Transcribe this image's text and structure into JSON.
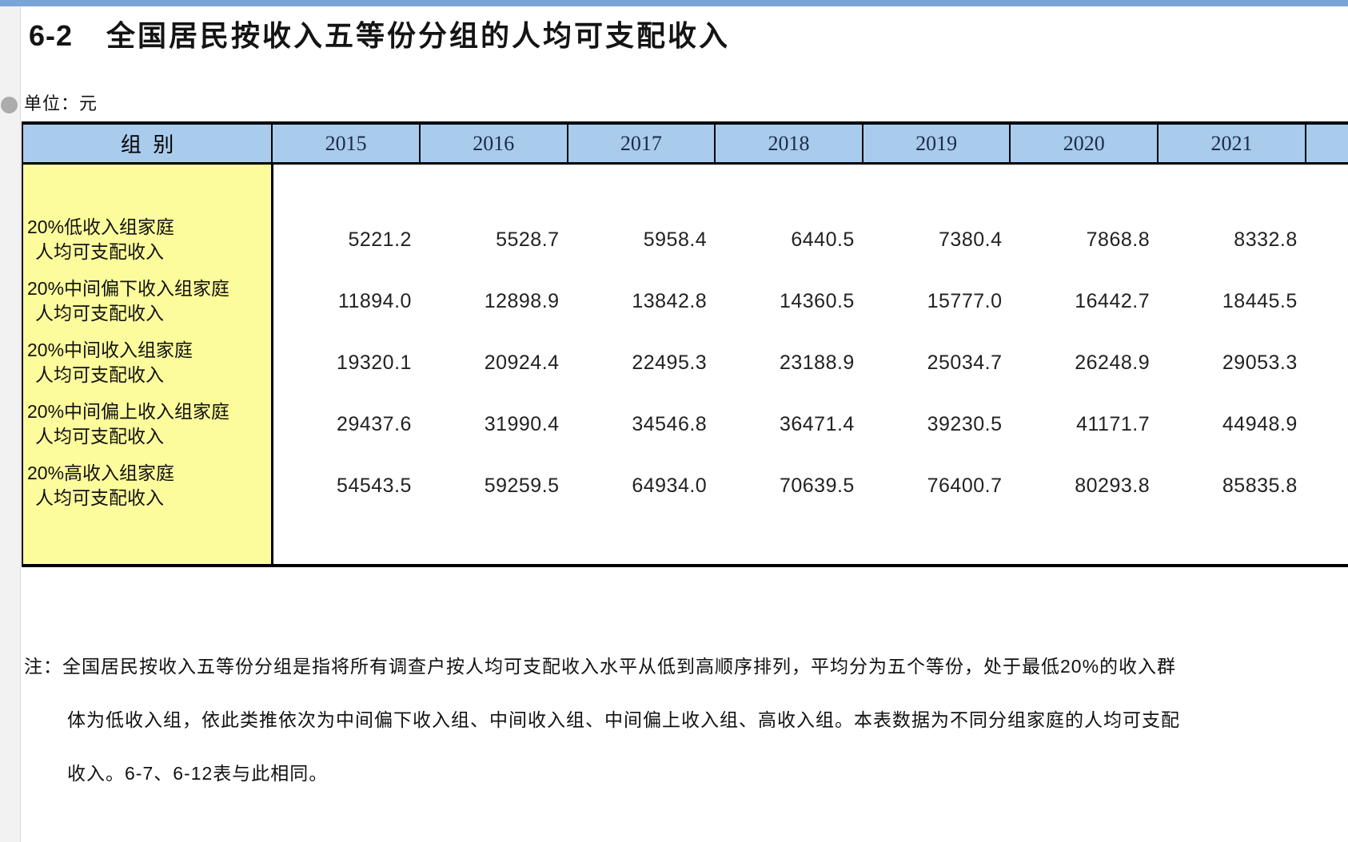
{
  "page": {
    "table_number": "6-2",
    "title": "全国居民按收入五等份分组的人均可支配收入",
    "unit_label": "单位：元"
  },
  "table": {
    "group_header": "组  别",
    "years": [
      "2015",
      "2016",
      "2017",
      "2018",
      "2019",
      "2020",
      "2021"
    ],
    "rows": [
      {
        "label_line1": "20%低收入组家庭",
        "label_line2": "人均可支配收入",
        "values": [
          "5221.2",
          "5528.7",
          "5958.4",
          "6440.5",
          "7380.4",
          "7868.8",
          "8332.8"
        ]
      },
      {
        "label_line1": "20%中间偏下收入组家庭",
        "label_line2": "人均可支配收入",
        "values": [
          "11894.0",
          "12898.9",
          "13842.8",
          "14360.5",
          "15777.0",
          "16442.7",
          "18445.5"
        ]
      },
      {
        "label_line1": "20%中间收入组家庭",
        "label_line2": "人均可支配收入",
        "values": [
          "19320.1",
          "20924.4",
          "22495.3",
          "23188.9",
          "25034.7",
          "26248.9",
          "29053.3"
        ]
      },
      {
        "label_line1": "20%中间偏上收入组家庭",
        "label_line2": "人均可支配收入",
        "values": [
          "29437.6",
          "31990.4",
          "34546.8",
          "36471.4",
          "39230.5",
          "41171.7",
          "44948.9"
        ]
      },
      {
        "label_line1": "20%高收入组家庭",
        "label_line2": "人均可支配收入",
        "values": [
          "54543.5",
          "59259.5",
          "64934.0",
          "70639.5",
          "76400.7",
          "80293.8",
          "85835.8"
        ]
      }
    ]
  },
  "note": {
    "line1": "注：全国居民按收入五等份分组是指将所有调查户按人均可支配收入水平从低到高顺序排列，平均分为五个等份，处于最低20%的收入群",
    "line2": "体为低收入组，依此类推依次为中间偏下收入组、中间收入组、中间偏上收入组、高收入组。本表数据为不同分组家庭的人均可支配",
    "line3": "收入。6-7、6-12表与此相同。"
  },
  "colors": {
    "top_strip": "#7BA4D6",
    "header_fill": "#A9CBEC",
    "label_column_fill": "#FDFC9C",
    "gutter_fill": "#F2F2F2",
    "gutter_dot": "#ACACAC",
    "border": "#000000",
    "year_text": "#1B2B4A"
  }
}
